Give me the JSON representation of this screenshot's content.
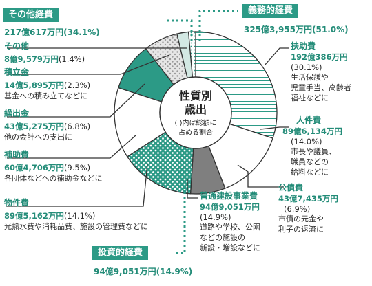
{
  "chart_data": {
    "type": "pie",
    "center_title": [
      "性質別",
      "歳出"
    ],
    "center_note": [
      "( )内は総額に",
      "占める割合"
    ],
    "slices": [
      {
        "name": "扶助費",
        "amount": "192億386万円",
        "percent": 30.1,
        "percent_label": "(30.1%)",
        "desc": [
          "生活保護や",
          "児童手当、高齢者",
          "福祉などに"
        ],
        "group": "義務的経費",
        "pattern": "hlines"
      },
      {
        "name": "人件費",
        "amount": "89億6,134万円",
        "percent": 14.0,
        "percent_label": "(14.0%)",
        "desc": [
          "市長や議員、",
          "職員などの",
          "給料などに"
        ],
        "group": "義務的経費",
        "pattern": "white"
      },
      {
        "name": "公債費",
        "amount": "43億7,435万円",
        "percent": 6.9,
        "percent_label": "(6.9%)",
        "desc": [
          "市債の元金や",
          "利子の返済に"
        ],
        "group": "義務的経費",
        "pattern": "gray"
      },
      {
        "name": "普通建設事業費",
        "amount": "94億9,051万円",
        "percent": 14.9,
        "percent_label": "(14.9%)",
        "desc": [
          "道路や学校、公園",
          "などの施設の",
          "新設・増設などに"
        ],
        "group": "投資的経費",
        "pattern": "dots"
      },
      {
        "name": "物件費",
        "amount": "89億5,162万円",
        "percent": 14.1,
        "percent_label": "(14.1%)",
        "desc": [
          "光熱水費や消耗品費、施設の管理費などに"
        ],
        "group": "その他経費",
        "pattern": "white"
      },
      {
        "name": "補助費",
        "amount": "60億4,706万円",
        "percent": 9.5,
        "percent_label": "(9.5%)",
        "desc": [
          "各団体などへの補助金などに"
        ],
        "group": "その他経費",
        "pattern": "solid"
      },
      {
        "name": "繰出金",
        "amount": "43億5,275万円",
        "percent": 6.8,
        "percent_label": "(6.8%)",
        "desc": [
          "他の会計への支出に"
        ],
        "group": "その他経費",
        "pattern": "graydots"
      },
      {
        "name": "積立金",
        "amount": "14億5,895万円",
        "percent": 2.3,
        "percent_label": "(2.3%)",
        "desc": [
          "基金への積み立てなどに"
        ],
        "group": "その他経費",
        "pattern": "light"
      },
      {
        "name": "その他",
        "amount": "8億9,579万円",
        "percent": 1.4,
        "percent_label": "(1.4%)",
        "desc": [],
        "group": "その他経費",
        "pattern": "finedots"
      }
    ],
    "groups": [
      {
        "title": "義務的経費",
        "total": "325億3,955万円(51.0%)"
      },
      {
        "title": "投資的経費",
        "total": "94億9,051万円(14.9%)"
      },
      {
        "title": "その他経費",
        "total": "217億617万円(34.1%)"
      }
    ]
  },
  "colors": {
    "accent": "#2c9a86",
    "dark_gray": "#7f7f7f",
    "light": "#d3e8e3",
    "stroke": "#333333"
  }
}
